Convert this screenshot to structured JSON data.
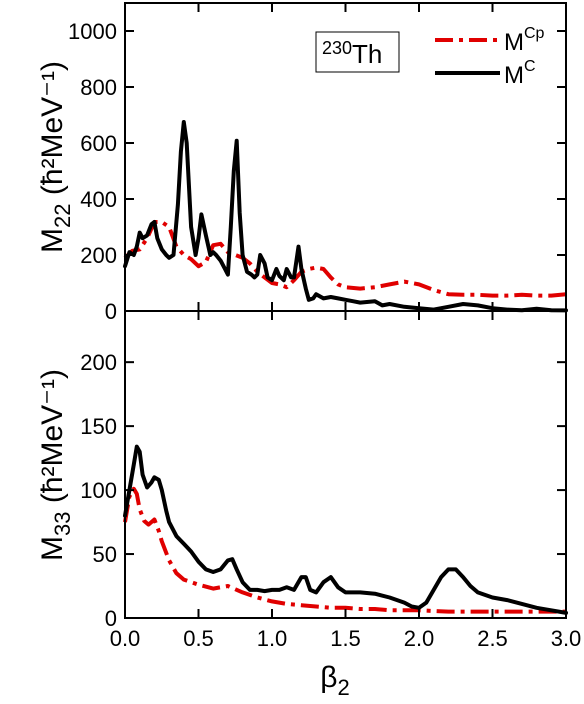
{
  "chart_data": [
    {
      "type": "line",
      "panel": "top",
      "nucleus_label": {
        "mass": "230",
        "symbol": "Th"
      },
      "ylabel": {
        "main": "M",
        "sub": "22",
        "unit": " (ħ²MeV⁻¹)"
      },
      "xlim": [
        0.0,
        3.0
      ],
      "ylim": [
        0,
        1100
      ],
      "yticks": [
        0,
        200,
        400,
        600,
        800,
        1000
      ],
      "xticks": [
        0.0,
        0.5,
        1.0,
        1.5,
        2.0,
        2.5,
        3.0
      ],
      "grid": false,
      "legend_position": "top-right",
      "series": [
        {
          "name": "M^Cp",
          "legend": {
            "base": "M",
            "sup": "Cp"
          },
          "color": "#e00000",
          "style": "dash-dot",
          "x": [
            0.0,
            0.05,
            0.1,
            0.15,
            0.2,
            0.25,
            0.3,
            0.35,
            0.4,
            0.45,
            0.5,
            0.55,
            0.6,
            0.65,
            0.7,
            0.75,
            0.8,
            0.85,
            0.9,
            0.95,
            1.0,
            1.05,
            1.1,
            1.15,
            1.2,
            1.25,
            1.3,
            1.35,
            1.4,
            1.45,
            1.5,
            1.6,
            1.7,
            1.8,
            1.9,
            2.0,
            2.1,
            2.2,
            2.3,
            2.4,
            2.5,
            2.6,
            2.7,
            2.8,
            2.9,
            3.0
          ],
          "y": [
            190,
            215,
            220,
            260,
            318,
            318,
            300,
            230,
            200,
            185,
            160,
            175,
            235,
            240,
            210,
            200,
            190,
            170,
            140,
            120,
            100,
            95,
            85,
            110,
            140,
            150,
            155,
            150,
            120,
            95,
            85,
            80,
            85,
            95,
            105,
            95,
            75,
            60,
            58,
            58,
            55,
            55,
            58,
            55,
            55,
            60
          ]
        },
        {
          "name": "M^C",
          "legend": {
            "base": "M",
            "sup": "C"
          },
          "color": "#000000",
          "style": "solid",
          "x": [
            0.0,
            0.03,
            0.06,
            0.08,
            0.1,
            0.12,
            0.15,
            0.18,
            0.2,
            0.22,
            0.25,
            0.28,
            0.3,
            0.33,
            0.36,
            0.38,
            0.4,
            0.42,
            0.45,
            0.48,
            0.5,
            0.52,
            0.55,
            0.58,
            0.6,
            0.62,
            0.65,
            0.68,
            0.7,
            0.72,
            0.74,
            0.76,
            0.78,
            0.8,
            0.83,
            0.86,
            0.88,
            0.9,
            0.92,
            0.95,
            0.97,
            1.0,
            1.03,
            1.05,
            1.08,
            1.1,
            1.13,
            1.15,
            1.18,
            1.2,
            1.23,
            1.25,
            1.28,
            1.3,
            1.35,
            1.4,
            1.45,
            1.5,
            1.55,
            1.6,
            1.7,
            1.75,
            1.8,
            1.9,
            2.0,
            2.1,
            2.2,
            2.3,
            2.4,
            2.5,
            2.6,
            2.7,
            2.8,
            2.9,
            3.0
          ],
          "y": [
            160,
            210,
            200,
            230,
            280,
            260,
            270,
            310,
            318,
            260,
            220,
            200,
            190,
            200,
            380,
            570,
            675,
            600,
            300,
            200,
            260,
            345,
            270,
            200,
            210,
            200,
            180,
            150,
            130,
            300,
            500,
            608,
            350,
            200,
            140,
            130,
            120,
            130,
            200,
            170,
            120,
            110,
            150,
            125,
            110,
            150,
            120,
            120,
            230,
            150,
            80,
            40,
            45,
            60,
            45,
            50,
            45,
            40,
            35,
            30,
            35,
            20,
            25,
            15,
            10,
            5,
            15,
            25,
            20,
            10,
            5,
            3,
            8,
            3,
            2
          ]
        }
      ]
    },
    {
      "type": "line",
      "panel": "bottom",
      "ylabel": {
        "main": "M",
        "sub": "33",
        "unit": " (ħ²MeV⁻¹)"
      },
      "xlabel": {
        "main": "β",
        "sub": "2"
      },
      "xlim": [
        0.0,
        3.0
      ],
      "ylim": [
        0,
        240
      ],
      "yticks": [
        0,
        50,
        100,
        150,
        200
      ],
      "xticks": [
        0.0,
        0.5,
        1.0,
        1.5,
        2.0,
        2.5,
        3.0
      ],
      "xtick_labels": [
        "0.0",
        "0.5",
        "1.0",
        "1.5",
        "2.0",
        "2.5",
        "3.0"
      ],
      "grid": false,
      "series": [
        {
          "name": "M^Cp",
          "color": "#e00000",
          "style": "dash-dot",
          "x": [
            0.0,
            0.03,
            0.06,
            0.08,
            0.1,
            0.13,
            0.16,
            0.2,
            0.23,
            0.25,
            0.3,
            0.35,
            0.4,
            0.5,
            0.6,
            0.7,
            0.8,
            0.9,
            1.0,
            1.1,
            1.2,
            1.3,
            1.4,
            1.5,
            1.6,
            1.7,
            1.8,
            1.9,
            2.0,
            2.2,
            2.4,
            2.6,
            2.8,
            3.0
          ],
          "y": [
            75,
            95,
            101,
            97,
            85,
            76,
            73,
            77,
            68,
            60,
            45,
            35,
            30,
            26,
            23,
            25,
            20,
            16,
            13,
            11,
            10,
            9,
            8,
            8,
            7,
            7,
            6,
            6,
            6,
            5,
            5,
            5,
            5,
            5
          ]
        },
        {
          "name": "M^C",
          "color": "#000000",
          "style": "solid",
          "x": [
            0.0,
            0.03,
            0.06,
            0.08,
            0.1,
            0.12,
            0.15,
            0.18,
            0.2,
            0.23,
            0.25,
            0.28,
            0.3,
            0.35,
            0.4,
            0.45,
            0.5,
            0.55,
            0.6,
            0.65,
            0.7,
            0.73,
            0.76,
            0.8,
            0.85,
            0.9,
            0.95,
            1.0,
            1.05,
            1.1,
            1.15,
            1.2,
            1.23,
            1.26,
            1.3,
            1.35,
            1.4,
            1.45,
            1.5,
            1.6,
            1.7,
            1.8,
            1.9,
            1.95,
            2.0,
            2.05,
            2.1,
            2.15,
            2.2,
            2.25,
            2.3,
            2.35,
            2.4,
            2.5,
            2.6,
            2.7,
            2.8,
            2.9,
            3.0
          ],
          "y": [
            80,
            100,
            120,
            134,
            130,
            112,
            102,
            106,
            110,
            108,
            100,
            84,
            75,
            64,
            58,
            52,
            44,
            38,
            36,
            38,
            45,
            46,
            38,
            28,
            22,
            22,
            21,
            22,
            22,
            24,
            22,
            32,
            32,
            22,
            20,
            28,
            32,
            24,
            20,
            20,
            19,
            16,
            12,
            9,
            8,
            12,
            22,
            32,
            38,
            38,
            32,
            25,
            20,
            16,
            14,
            11,
            8,
            6,
            4
          ]
        }
      ]
    }
  ]
}
